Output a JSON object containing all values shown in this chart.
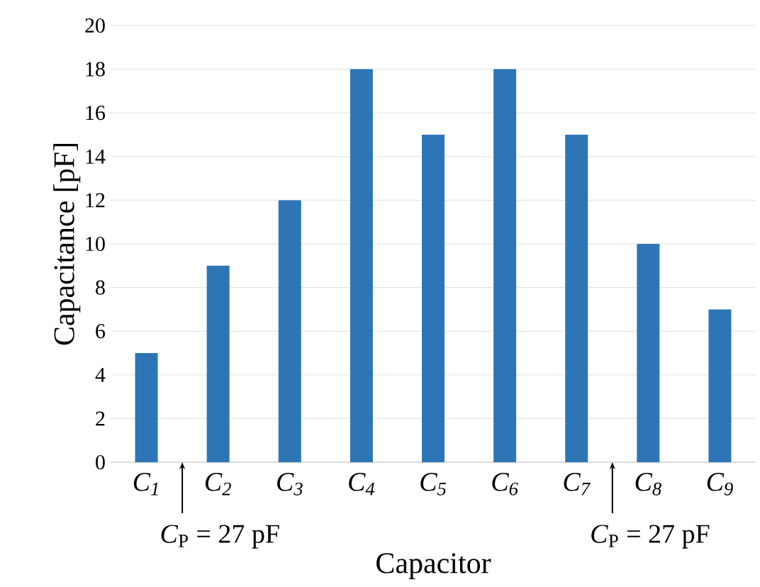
{
  "chart_data": {
    "type": "bar",
    "xlabel": "Capacitor",
    "ylabel": "Capacitance [pF]",
    "categories": [
      "C$_{1}$",
      "C$_{2}$",
      "C$_{3}$",
      "C$_{4}$",
      "C$_{5}$",
      "C$_{6}$",
      "C$_{7}$",
      "C$_{8}$",
      "C$_{9}$"
    ],
    "values": [
      5,
      9,
      12,
      18,
      15,
      18,
      15,
      10,
      7
    ],
    "color": "#2e75b6",
    "ylim": [
      0,
      20
    ],
    "yticks": [
      0,
      2,
      4,
      6,
      8,
      10,
      12,
      14,
      16,
      18,
      20
    ],
    "grid": "y",
    "annotations": [
      "*C*$_{P}$ = 27 pF",
      "*C*$_{P}$ = 27 pF"
    ]
  }
}
